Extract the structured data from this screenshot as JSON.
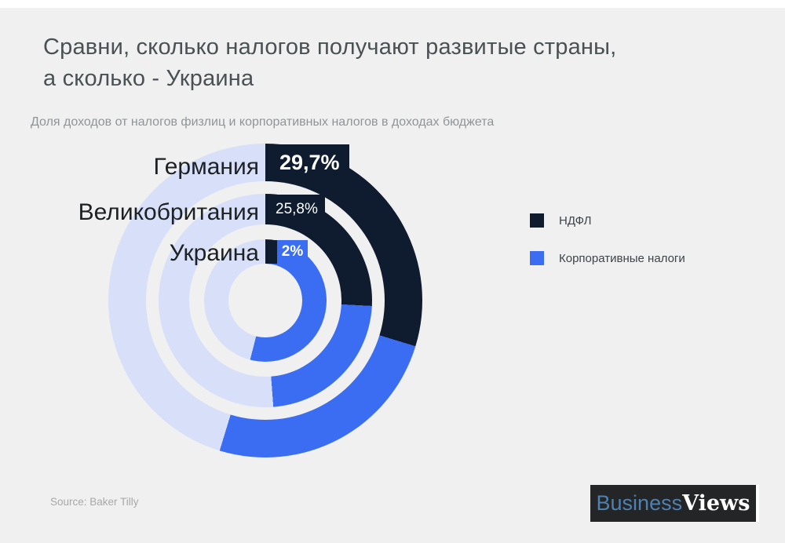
{
  "title": {
    "line1": "Сравни, сколько налогов получают развитые страны,",
    "line2": "а сколько - Украина"
  },
  "subtitle": "Доля доходов от налогов физлиц и корпоративных налогов в доходах бюджета",
  "chart_data": {
    "type": "pie",
    "variant": "concentric-donut",
    "title": "Доля доходов от налогов физлиц и корпоративных налогов в доходах бюджета",
    "unit": "% of budget revenues",
    "legend_position": "right",
    "series": [
      {
        "name": "НДФЛ",
        "color": "#0f1c30"
      },
      {
        "name": "Корпоративные налоги",
        "color": "#3b6df2"
      }
    ],
    "rings": [
      {
        "label": "Германия",
        "pct_label": "29,7%",
        "values": [
          29.7,
          25.0
        ]
      },
      {
        "label": "Великобритания",
        "pct_label": "25,8%",
        "values": [
          25.8,
          23.0
        ]
      },
      {
        "label": "Украина",
        "pct_label": "2%",
        "values": [
          2.0,
          52.0
        ]
      }
    ],
    "values_note": "values[0] = НДФЛ (labeled on chart), values[1] = Корпоративные налоги (estimated from arc length); ring remainder drawn in light lavender"
  },
  "legend": {
    "items": [
      {
        "label": "НДФЛ",
        "color": "#0f1c30"
      },
      {
        "label": "Корпоративные налоги",
        "color": "#3b6df2"
      }
    ]
  },
  "source": "Source: Baker Tilly",
  "logo": {
    "part1": "Business",
    "part2": "Views"
  },
  "colors": {
    "ndfl": "#0f1c30",
    "corporate": "#3b6df2",
    "remainder": "#d7e0f8",
    "background": "#f0f0f1"
  }
}
